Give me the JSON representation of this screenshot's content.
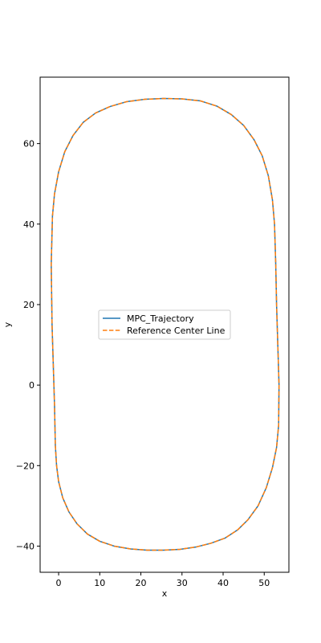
{
  "chart_data": {
    "type": "line",
    "title": "",
    "xlabel": "x",
    "ylabel": "y",
    "xlim": [
      -4.5,
      56
    ],
    "ylim": [
      -46.5,
      76.5
    ],
    "xticks": [
      0,
      10,
      20,
      30,
      40,
      50
    ],
    "yticks": [
      -40,
      -20,
      0,
      20,
      40,
      60
    ],
    "xtick_labels": [
      "0",
      "10",
      "20",
      "30",
      "40",
      "50"
    ],
    "ytick_labels": [
      "−40",
      "−20",
      "0",
      "20",
      "40",
      "60"
    ],
    "grid": false,
    "legend_position": "center",
    "series": [
      {
        "name": "MPC_Trajectory",
        "color": "#1f77b4",
        "style": "solid",
        "x": [
          -0.8,
          -0.5,
          0.0,
          1.0,
          2.5,
          4.5,
          7.0,
          10.0,
          13.5,
          17.5,
          21.5,
          25.5,
          29.5,
          33.5,
          37.0,
          40.5,
          43.5,
          46.0,
          48.5,
          50.5,
          52.0,
          53.0,
          53.5,
          53.6,
          53.3,
          53.0,
          52.8,
          52.5,
          52.0,
          51.0,
          49.5,
          47.5,
          45.0,
          42.0,
          38.5,
          34.5,
          30.0,
          25.5,
          21.0,
          16.5,
          12.5,
          9.0,
          6.0,
          3.5,
          1.5,
          0.0,
          -1.0,
          -1.5,
          -1.8,
          -1.6,
          -1.3,
          -1.0,
          -0.8
        ],
        "y": [
          -15.0,
          -20.0,
          -24.0,
          -28.0,
          -31.5,
          -34.5,
          -37.0,
          -38.8,
          -40.0,
          -40.7,
          -41.0,
          -41.0,
          -40.8,
          -40.2,
          -39.3,
          -38.0,
          -36.0,
          -33.5,
          -30.0,
          -25.5,
          -20.5,
          -15.5,
          -10.0,
          0.0,
          10.0,
          20.0,
          30.0,
          40.0,
          46.0,
          52.0,
          57.0,
          61.0,
          64.5,
          67.2,
          69.3,
          70.6,
          71.1,
          71.2,
          71.0,
          70.4,
          69.2,
          67.6,
          65.3,
          62.0,
          58.0,
          53.0,
          47.5,
          42.0,
          30.0,
          15.0,
          5.0,
          -5.0,
          -15.0
        ]
      },
      {
        "name": "Reference Center Line",
        "color": "#ff7f0e",
        "style": "dashed",
        "x": [
          -0.8,
          -0.5,
          0.0,
          1.0,
          2.5,
          4.5,
          7.0,
          10.0,
          13.5,
          17.5,
          21.5,
          25.5,
          29.5,
          33.5,
          37.0,
          40.5,
          43.5,
          46.0,
          48.5,
          50.5,
          52.0,
          53.0,
          53.5,
          53.6,
          53.3,
          53.0,
          52.8,
          52.5,
          52.0,
          51.0,
          49.5,
          47.5,
          45.0,
          42.0,
          38.5,
          34.5,
          30.0,
          25.5,
          21.0,
          16.5,
          12.5,
          9.0,
          6.0,
          3.5,
          1.5,
          0.0,
          -1.0,
          -1.5,
          -1.8,
          -1.6,
          -1.3,
          -1.0,
          -0.8
        ],
        "y": [
          -15.0,
          -20.0,
          -24.0,
          -28.0,
          -31.5,
          -34.5,
          -37.0,
          -38.8,
          -40.0,
          -40.7,
          -41.0,
          -41.0,
          -40.8,
          -40.2,
          -39.3,
          -38.0,
          -36.0,
          -33.5,
          -30.0,
          -25.5,
          -20.5,
          -15.5,
          -10.0,
          0.0,
          10.0,
          20.0,
          30.0,
          40.0,
          46.0,
          52.0,
          57.0,
          61.0,
          64.5,
          67.2,
          69.3,
          70.6,
          71.1,
          71.2,
          71.0,
          70.4,
          69.2,
          67.6,
          65.3,
          62.0,
          58.0,
          53.0,
          47.5,
          42.0,
          30.0,
          15.0,
          5.0,
          -5.0,
          -15.0
        ]
      }
    ]
  }
}
